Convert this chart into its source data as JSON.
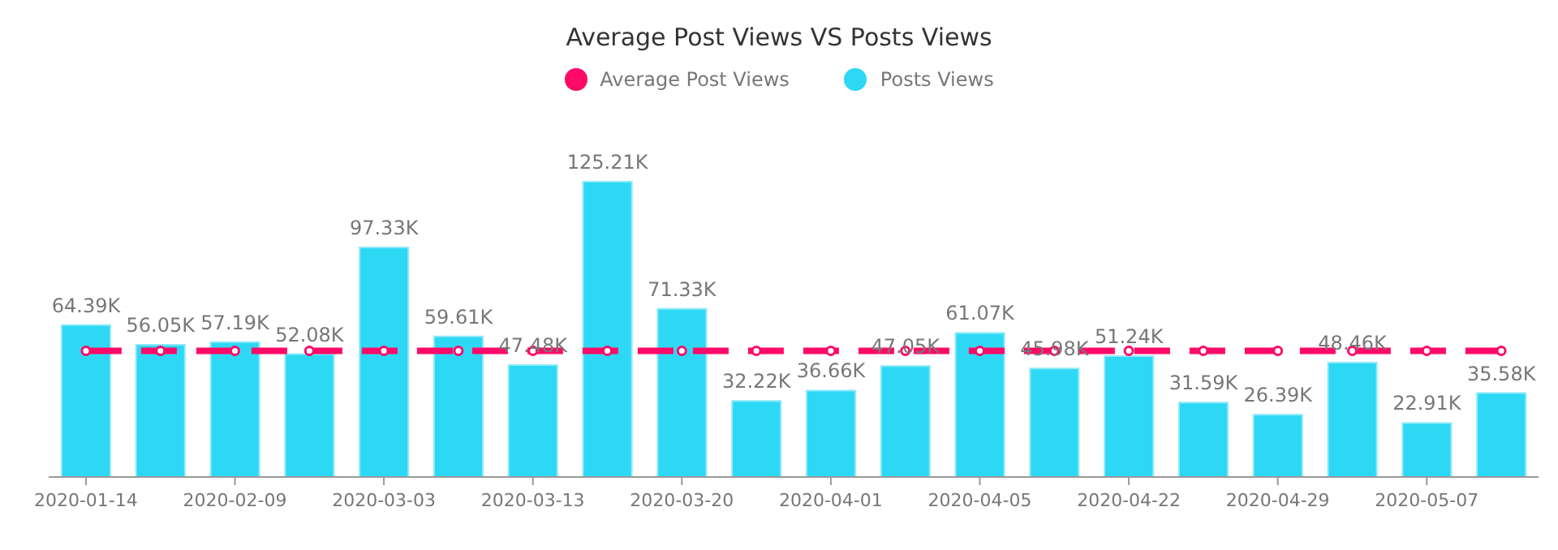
{
  "chart_data": {
    "type": "bar",
    "title": "Average Post Views VS Posts Views",
    "legend": "top",
    "tick_labels": "x",
    "categories": [
      "2020-01-14",
      null,
      "2020-02-09",
      null,
      "2020-03-03",
      null,
      "2020-03-13",
      null,
      "2020-03-20",
      null,
      "2020-04-01",
      null,
      "2020-04-05",
      null,
      "2020-04-22",
      null,
      "2020-04-29",
      null,
      "2020-05-07",
      null
    ],
    "series": [
      {
        "name": "Average Post Views",
        "type": "line",
        "color": "#ff0a68",
        "line_style": "dashed",
        "marker": "circle",
        "values": [
          53.49,
          53.49,
          53.49,
          53.49,
          53.49,
          53.49,
          53.49,
          53.49,
          53.49,
          53.49,
          53.49,
          53.49,
          53.49,
          53.49,
          53.49,
          53.49,
          53.49,
          53.49,
          53.49,
          53.49
        ]
      },
      {
        "name": "Posts Views",
        "color": "#2dd8f4",
        "values": [
          64.39,
          56.05,
          57.19,
          52.08,
          97.33,
          59.61,
          47.48,
          125.21,
          71.33,
          32.22,
          36.66,
          47.05,
          61.07,
          45.98,
          51.24,
          31.59,
          26.39,
          48.46,
          22.91,
          35.58
        ],
        "value_labels": [
          "64.39K",
          "56.05K",
          "57.19K",
          "52.08K",
          "97.33K",
          "59.61K",
          "47.48K",
          "125.21K",
          "71.33K",
          "32.22K",
          "36.66K",
          "47.05K",
          "61.07K",
          "45.98K",
          "51.24K",
          "31.59K",
          "26.39K",
          "48.46K",
          "22.91K",
          "35.58K"
        ]
      }
    ]
  }
}
